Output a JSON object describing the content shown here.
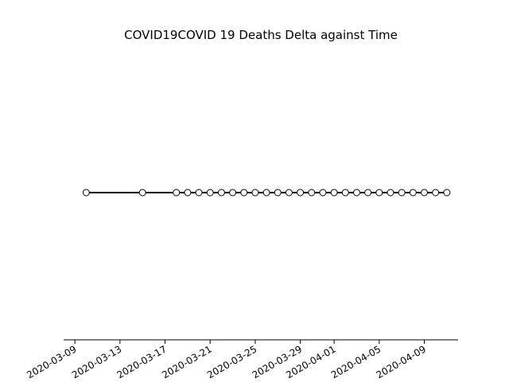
{
  "chart_data": {
    "type": "line",
    "title": "COVID19COVID 19 Deaths Delta against Time",
    "xlabel": "",
    "ylabel": "",
    "x_type": "date",
    "xlim": [
      "2020-03-08",
      "2020-04-12"
    ],
    "x_ticks": [
      "2020-03-09",
      "2020-03-13",
      "2020-03-17",
      "2020-03-21",
      "2020-03-25",
      "2020-03-29",
      "2020-04-01",
      "2020-04-05",
      "2020-04-09"
    ],
    "grid": false,
    "legend": "none",
    "series": [
      {
        "color": "#000000",
        "marker": "circle-open",
        "points": [
          {
            "x": "2020-03-10",
            "y": 0
          },
          {
            "x": "2020-03-15",
            "y": 0
          },
          {
            "x": "2020-03-18",
            "y": 0
          },
          {
            "x": "2020-03-19",
            "y": 0
          },
          {
            "x": "2020-03-20",
            "y": 0
          },
          {
            "x": "2020-03-21",
            "y": 0
          },
          {
            "x": "2020-03-22",
            "y": 0
          },
          {
            "x": "2020-03-23",
            "y": 0
          },
          {
            "x": "2020-03-24",
            "y": 0
          },
          {
            "x": "2020-03-25",
            "y": 0
          },
          {
            "x": "2020-03-26",
            "y": 0
          },
          {
            "x": "2020-03-27",
            "y": 0
          },
          {
            "x": "2020-03-28",
            "y": 0
          },
          {
            "x": "2020-03-29",
            "y": 0
          },
          {
            "x": "2020-03-30",
            "y": 0
          },
          {
            "x": "2020-03-31",
            "y": 0
          },
          {
            "x": "2020-04-01",
            "y": 0
          },
          {
            "x": "2020-04-02",
            "y": 0
          },
          {
            "x": "2020-04-03",
            "y": 0
          },
          {
            "x": "2020-04-04",
            "y": 0
          },
          {
            "x": "2020-04-05",
            "y": 0
          },
          {
            "x": "2020-04-06",
            "y": 0
          },
          {
            "x": "2020-04-07",
            "y": 0
          },
          {
            "x": "2020-04-08",
            "y": 0
          },
          {
            "x": "2020-04-09",
            "y": 0
          },
          {
            "x": "2020-04-10",
            "y": 0
          },
          {
            "x": "2020-04-11",
            "y": 0
          }
        ]
      }
    ]
  }
}
